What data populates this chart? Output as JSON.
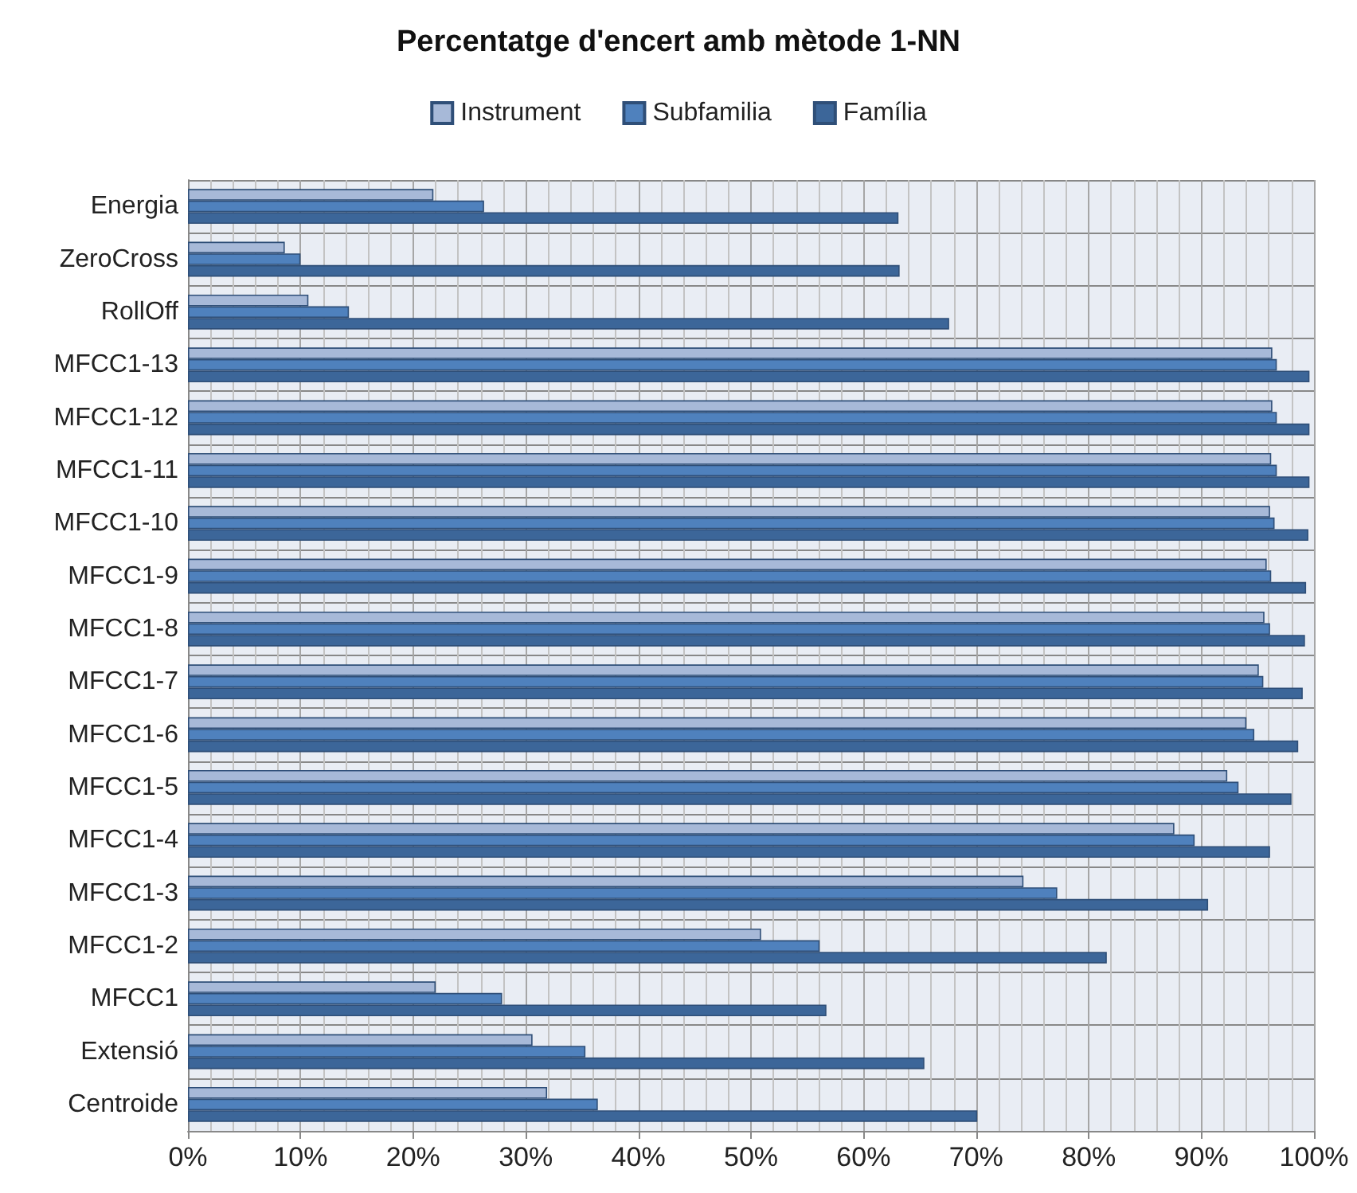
{
  "chart_data": {
    "type": "bar",
    "orientation": "horizontal",
    "title": "Percentatge d'encert amb mètode 1-NN",
    "categories": [
      "Energia",
      "ZeroCross",
      "RollOff",
      "MFCC1-13",
      "MFCC1-12",
      "MFCC1-11",
      "MFCC1-10",
      "MFCC1-9",
      "MFCC1-8",
      "MFCC1-7",
      "MFCC1-6",
      "MFCC1-5",
      "MFCC1-4",
      "MFCC1-3",
      "MFCC1-2",
      "MFCC1",
      "Extensió",
      "Centroide"
    ],
    "series": [
      {
        "name": "Instrument",
        "color": "#a7b9d8",
        "values": [
          21.8,
          8.6,
          10.7,
          96.3,
          96.3,
          96.2,
          96.1,
          95.8,
          95.6,
          95.1,
          94.0,
          92.3,
          87.6,
          74.2,
          50.9,
          22.0,
          30.6,
          31.9
        ]
      },
      {
        "name": "Subfamilia",
        "color": "#4f81bd",
        "values": [
          26.3,
          10.0,
          14.3,
          96.7,
          96.7,
          96.7,
          96.5,
          96.2,
          96.1,
          95.5,
          94.7,
          93.3,
          89.4,
          77.2,
          56.1,
          27.9,
          35.3,
          36.4
        ]
      },
      {
        "name": "Família",
        "color": "#3c6699",
        "values": [
          63.1,
          63.2,
          67.6,
          99.6,
          99.6,
          99.6,
          99.5,
          99.3,
          99.2,
          99.0,
          98.6,
          98.0,
          96.1,
          90.6,
          81.6,
          56.7,
          65.4,
          70.1
        ]
      }
    ],
    "xlim": [
      0,
      100
    ],
    "xticks": [
      {
        "value": 0,
        "label": "0%"
      },
      {
        "value": 10,
        "label": "10%"
      },
      {
        "value": 20,
        "label": "20%"
      },
      {
        "value": 30,
        "label": "30%"
      },
      {
        "value": 40,
        "label": "40%"
      },
      {
        "value": 50,
        "label": "50%"
      },
      {
        "value": 60,
        "label": "60%"
      },
      {
        "value": 70,
        "label": "70%"
      },
      {
        "value": 80,
        "label": "80%"
      },
      {
        "value": 90,
        "label": "90%"
      },
      {
        "value": 100,
        "label": "100%"
      }
    ],
    "grid": true,
    "legend": "top"
  }
}
